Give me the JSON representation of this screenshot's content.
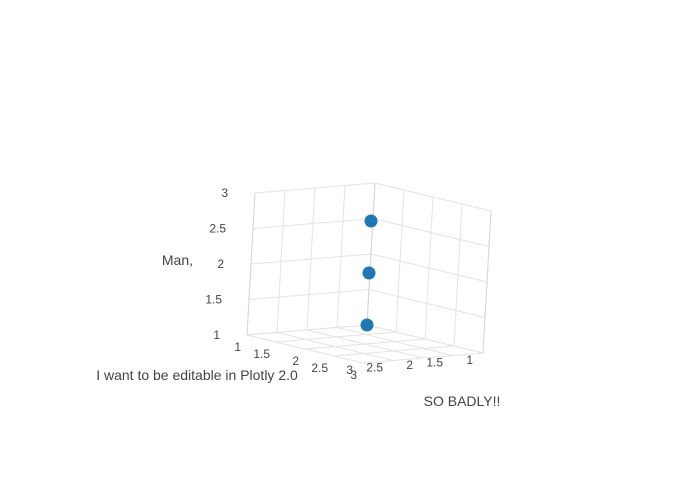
{
  "chart_data": {
    "type": "scatter3d",
    "title": "",
    "xlabel": "I want to be editable in Plotly 2.0",
    "ylabel": "SO BADLY!!",
    "zlabel": "Man,",
    "x": [
      1,
      2,
      3
    ],
    "y": [
      1,
      2,
      3
    ],
    "z": [
      1,
      2,
      3
    ],
    "xlim": [
      1,
      3
    ],
    "ylim": [
      1,
      3
    ],
    "zlim": [
      1,
      3
    ],
    "x_ticks": [
      1,
      1.5,
      2,
      2.5,
      3
    ],
    "y_ticks": [
      1,
      1.5,
      2,
      2.5,
      3
    ],
    "z_ticks": [
      1,
      1.5,
      2,
      2.5,
      3
    ],
    "marker_color": "#1f77b4",
    "grid": true
  }
}
